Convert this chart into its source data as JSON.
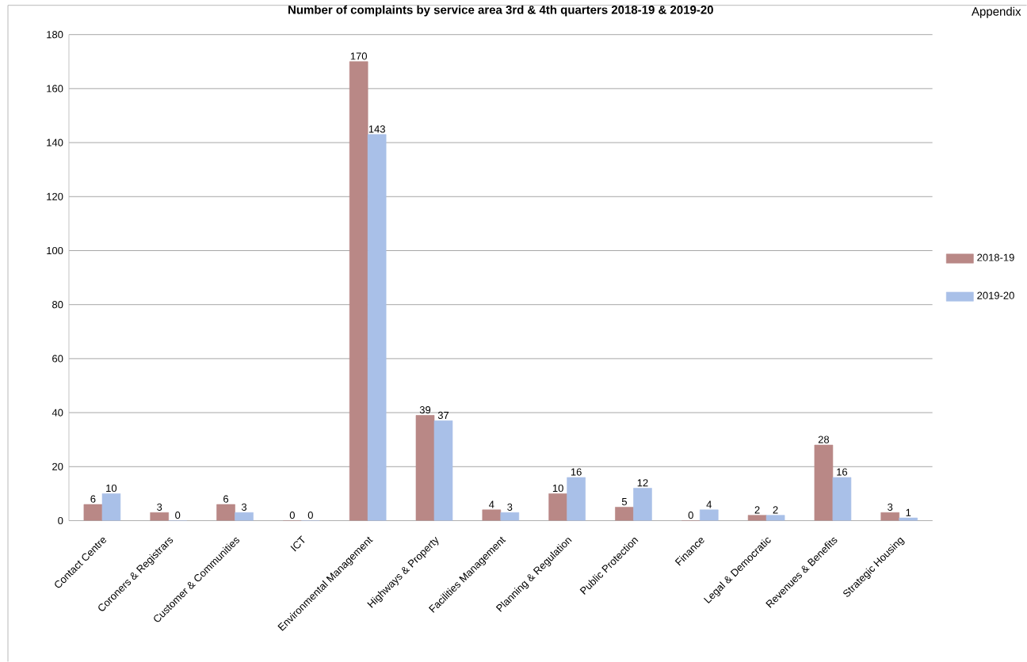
{
  "chart_data": {
    "type": "bar",
    "title": "Number of complaints by service area 3rd & 4th quarters 2018-19 & 2019-20",
    "categories": [
      "Contact Centre",
      "Coroners & Registrars",
      "Customer & Communities",
      "ICT",
      "Environmental Management",
      "Highways & Property",
      "Facilities Management",
      "Planning & Regulation",
      "Public Protection",
      "Finance",
      "Legal & Democratic",
      "Revenues & Benefits",
      "Strategic Housing"
    ],
    "series": [
      {
        "name": "2018-19",
        "color": "#b98886",
        "values": [
          6,
          3,
          6,
          0,
          170,
          39,
          4,
          10,
          5,
          0,
          2,
          28,
          3
        ]
      },
      {
        "name": "2019-20",
        "color": "#a9c0e8",
        "values": [
          10,
          0,
          3,
          0,
          143,
          37,
          3,
          16,
          12,
          4,
          2,
          16,
          1
        ]
      }
    ],
    "ylim": [
      0,
      180
    ],
    "yticks": [
      0,
      20,
      40,
      60,
      80,
      100,
      120,
      140,
      160,
      180
    ],
    "grid": "y",
    "legend": "right",
    "data_labels": true,
    "annotations": [
      "Appendix"
    ]
  }
}
